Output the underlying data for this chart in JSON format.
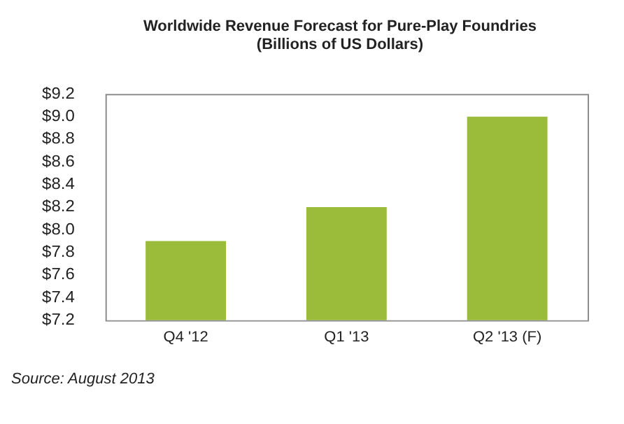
{
  "chart_data": {
    "type": "bar",
    "title": "Worldwide Revenue Forecast for Pure-Play Foundries (Billions of US Dollars)",
    "categories": [
      "Q4 '12",
      "Q1 '13",
      "Q2 '13 (F)"
    ],
    "values": [
      7.9,
      8.2,
      9.0
    ],
    "color": "#9bbb3b",
    "ylim": [
      7.2,
      9.2
    ],
    "yticks": [
      {
        "value": 7.2,
        "label": "$7.2"
      },
      {
        "value": 7.4,
        "label": "$7.4"
      },
      {
        "value": 7.6,
        "label": "$7.6"
      },
      {
        "value": 7.8,
        "label": "$7.8"
      },
      {
        "value": 8.0,
        "label": "$8.0"
      },
      {
        "value": 8.2,
        "label": "$8.2"
      },
      {
        "value": 8.4,
        "label": "$8.4"
      },
      {
        "value": 8.6,
        "label": "$8.6"
      },
      {
        "value": 8.8,
        "label": "$8.8"
      },
      {
        "value": 9.0,
        "label": "$9.0"
      },
      {
        "value": 9.2,
        "label": "$9.2"
      }
    ],
    "grid": false,
    "legend": false,
    "annotations": [
      "Source: August 2013"
    ]
  }
}
